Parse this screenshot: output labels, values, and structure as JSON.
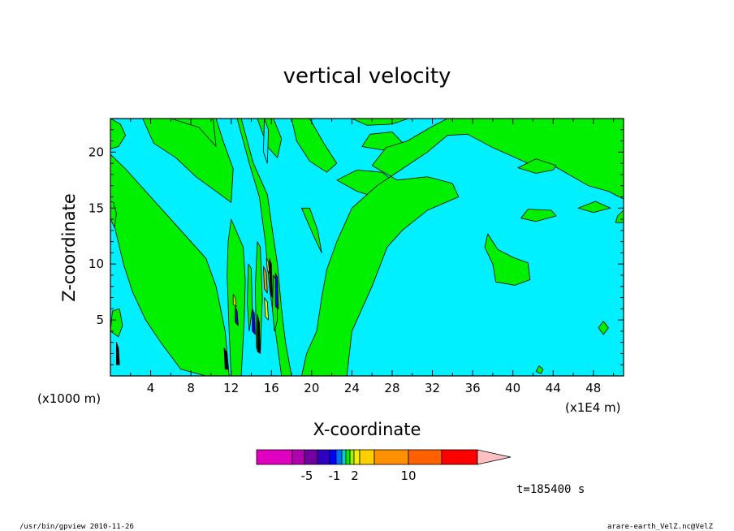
{
  "chart_data": {
    "type": "heatmap",
    "title": "vertical velocity",
    "xlabel": "X-coordinate",
    "ylabel": "Z-coordinate",
    "x_scale_note": "(x1E4 m)",
    "y_scale_note": "(x1000 m)",
    "xlim": [
      0,
      51
    ],
    "ylim": [
      0,
      23
    ],
    "x_ticks": [
      4,
      8,
      12,
      16,
      20,
      24,
      28,
      32,
      36,
      40,
      44,
      48
    ],
    "y_ticks": [
      5,
      10,
      15,
      20
    ],
    "colorbar": {
      "colors": [
        "#e000c0",
        "#b000b0",
        "#7000a0",
        "#3000c0",
        "#0000ff",
        "#0070ff",
        "#00d0d0",
        "#00f000",
        "#a0f000",
        "#f0f000",
        "#ffd000",
        "#ff9000",
        "#ff6000",
        "#ff0000",
        "#ff8080",
        "#ffc0c0"
      ],
      "labels": [
        "-5",
        "-1",
        "2",
        "10"
      ]
    },
    "background_color": "#00f0ff",
    "updraft_color": "#00f000"
  },
  "annotations": {
    "time": "t=185400 s",
    "footer_left": "/usr/bin/gpview  2010-11-26",
    "footer_right": "arare-earth_VelZ.nc@VelZ"
  }
}
